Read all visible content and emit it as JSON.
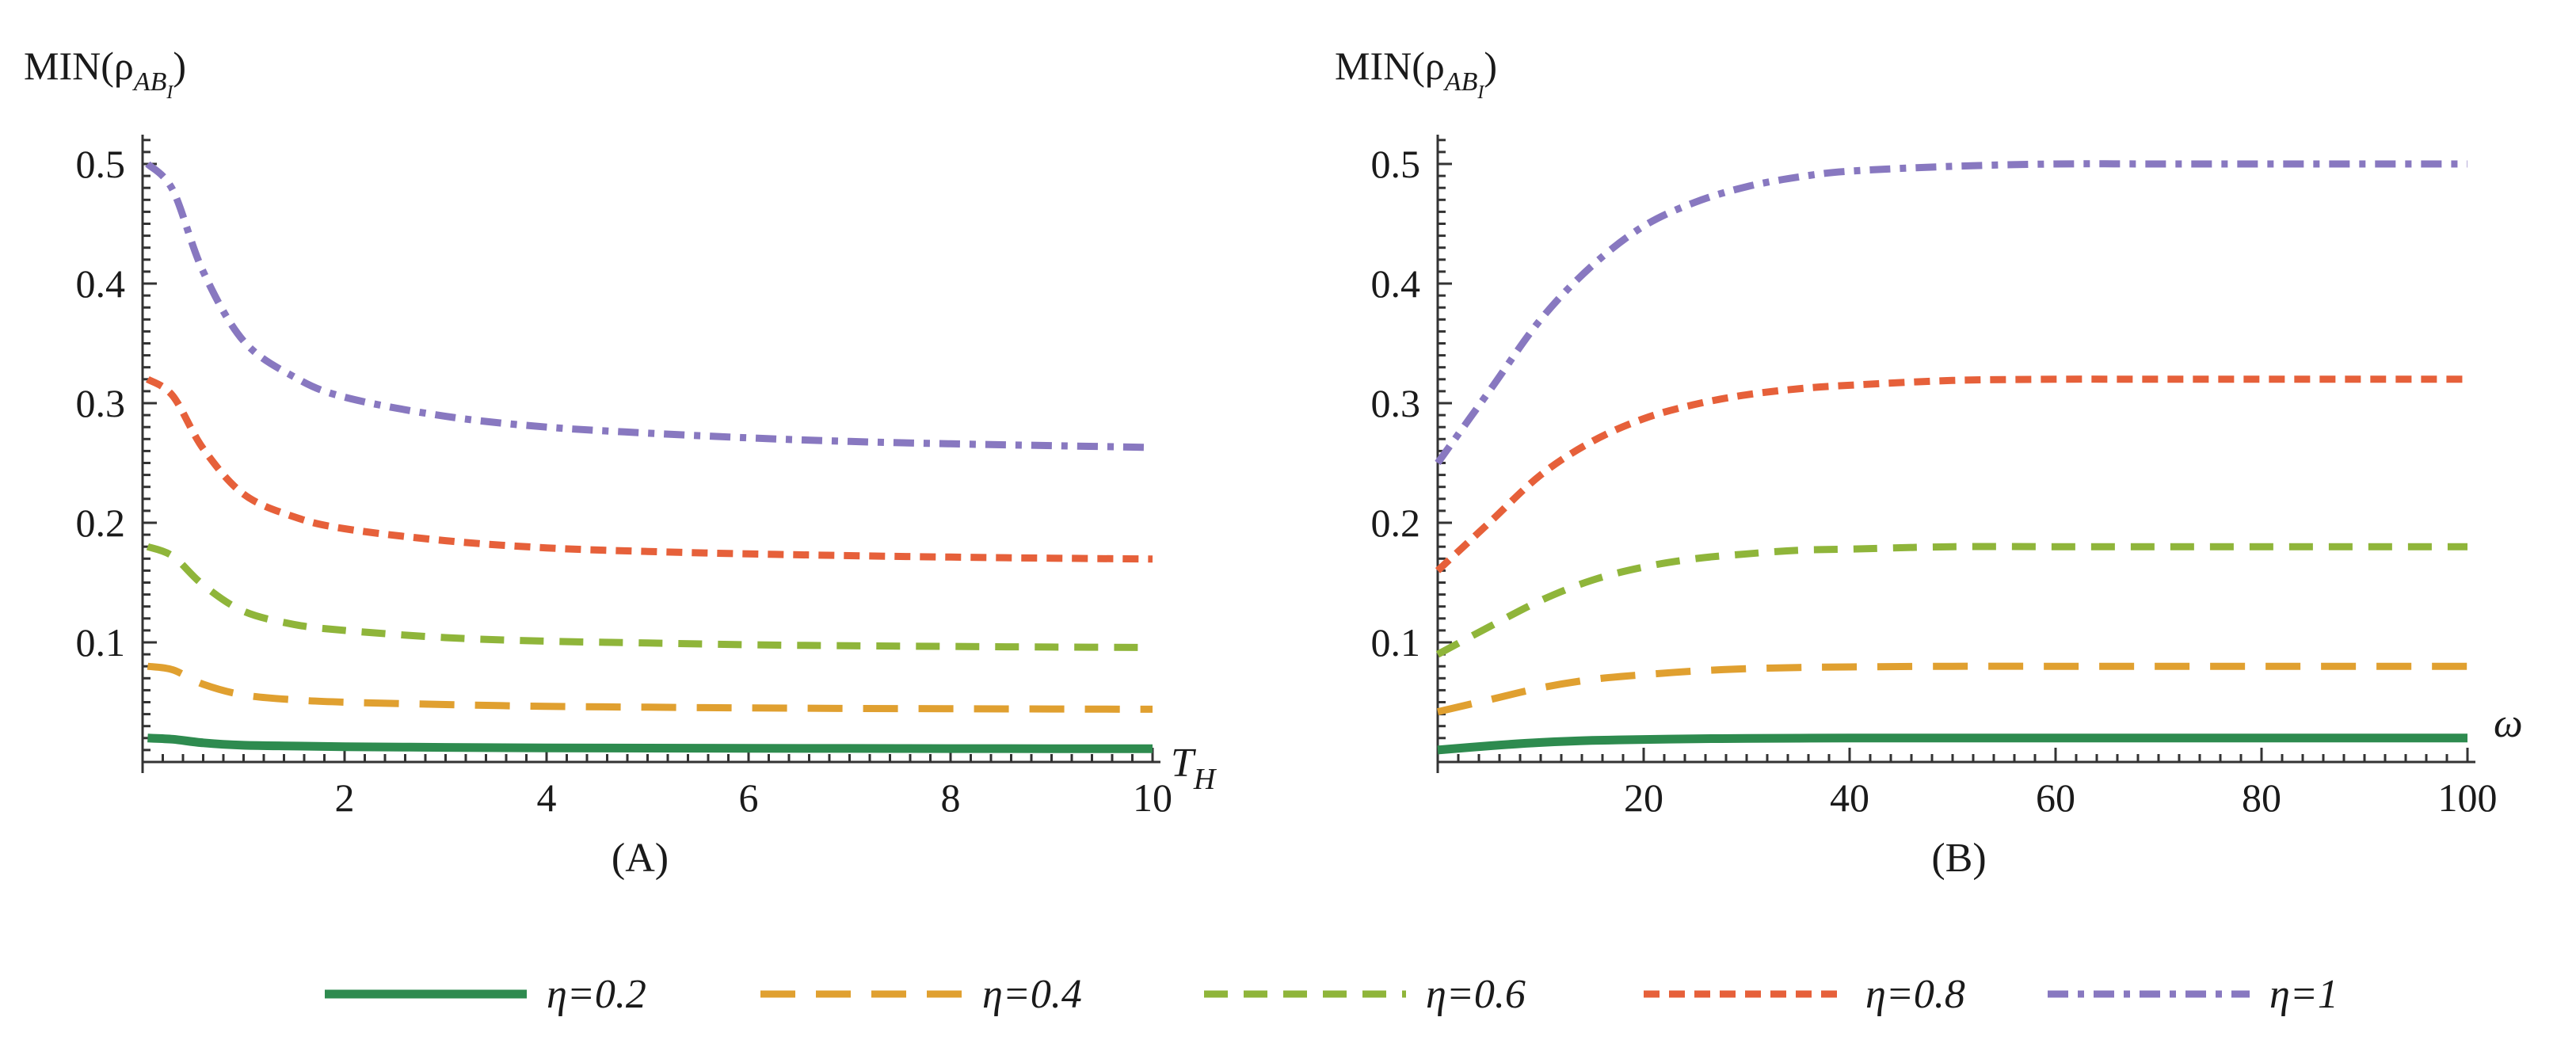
{
  "chart_data": [
    {
      "type": "line",
      "panel_label": "(A)",
      "ylabel": "MIN(ρ",
      "ylabel_sub": "AB",
      "ylabel_subsub": "I",
      "ylabel_close": ")",
      "xlabel": "T",
      "xlabel_sub": "H",
      "xlim": [
        0,
        10
      ],
      "ylim": [
        0,
        0.52
      ],
      "xticks": [
        2,
        4,
        6,
        8,
        10
      ],
      "xtick_labels": [
        "2",
        "4",
        "6",
        "8",
        "10"
      ],
      "yticks": [
        0.1,
        0.2,
        0.3,
        0.4,
        0.5
      ],
      "ytick_labels": [
        "0.1",
        "0.2",
        "0.3",
        "0.4",
        "0.5"
      ],
      "series": [
        {
          "name": "η=0.2",
          "x": [
            0.05,
            0.3,
            0.6,
            1.0,
            1.5,
            2,
            3,
            4,
            5,
            6,
            7,
            8,
            9,
            10
          ],
          "values": [
            0.02,
            0.019,
            0.016,
            0.014,
            0.0133,
            0.0128,
            0.0122,
            0.0118,
            0.0116,
            0.0114,
            0.0113,
            0.0112,
            0.0111,
            0.0111
          ]
        },
        {
          "name": "η=0.4",
          "x": [
            0.05,
            0.3,
            0.6,
            1.0,
            1.5,
            2,
            3,
            4,
            5,
            6,
            7,
            8,
            9,
            10
          ],
          "values": [
            0.08,
            0.077,
            0.065,
            0.056,
            0.052,
            0.05,
            0.048,
            0.0465,
            0.0458,
            0.0452,
            0.0448,
            0.0445,
            0.0443,
            0.0441
          ]
        },
        {
          "name": "η=0.6",
          "x": [
            0.05,
            0.3,
            0.6,
            1.0,
            1.5,
            2,
            3,
            4,
            5,
            6,
            7,
            8,
            9,
            10
          ],
          "values": [
            0.18,
            0.172,
            0.148,
            0.126,
            0.115,
            0.11,
            0.104,
            0.101,
            0.0995,
            0.098,
            0.0972,
            0.0966,
            0.0961,
            0.0957
          ]
        },
        {
          "name": "η=0.8",
          "x": [
            0.05,
            0.3,
            0.6,
            1.0,
            1.5,
            2,
            3,
            4,
            5,
            6,
            7,
            8,
            9,
            10
          ],
          "values": [
            0.32,
            0.306,
            0.262,
            0.224,
            0.205,
            0.195,
            0.185,
            0.179,
            0.176,
            0.174,
            0.1725,
            0.1713,
            0.1704,
            0.1697
          ]
        },
        {
          "name": "η=1",
          "x": [
            0.05,
            0.3,
            0.6,
            1.0,
            1.5,
            2,
            3,
            4,
            5,
            6,
            7,
            8,
            9,
            10
          ],
          "values": [
            0.5,
            0.478,
            0.41,
            0.352,
            0.322,
            0.305,
            0.289,
            0.28,
            0.275,
            0.271,
            0.268,
            0.266,
            0.2645,
            0.263
          ]
        }
      ]
    },
    {
      "type": "line",
      "panel_label": "(B)",
      "ylabel": "MIN(ρ",
      "ylabel_sub": "AB",
      "ylabel_subsub": "I",
      "ylabel_close": ")",
      "xlabel": "ω",
      "xlabel_sub": "",
      "xlim": [
        0,
        100
      ],
      "ylim": [
        0,
        0.52
      ],
      "xticks": [
        20,
        40,
        60,
        80,
        100
      ],
      "xtick_labels": [
        "20",
        "40",
        "60",
        "80",
        "100"
      ],
      "yticks": [
        0.1,
        0.2,
        0.3,
        0.4,
        0.5
      ],
      "ytick_labels": [
        "0.1",
        "0.2",
        "0.3",
        "0.4",
        "0.5"
      ],
      "series": [
        {
          "name": "η=0.2",
          "x": [
            0,
            5,
            10,
            15,
            20,
            25,
            30,
            35,
            40,
            50,
            60,
            70,
            80,
            90,
            100
          ],
          "values": [
            0.01,
            0.0135,
            0.0163,
            0.018,
            0.0188,
            0.0194,
            0.0197,
            0.0199,
            0.02,
            0.02,
            0.02,
            0.02,
            0.02,
            0.02,
            0.02
          ]
        },
        {
          "name": "η=0.4",
          "x": [
            0,
            5,
            10,
            15,
            20,
            25,
            30,
            35,
            40,
            50,
            60,
            70,
            80,
            90,
            100
          ],
          "values": [
            0.042,
            0.052,
            0.062,
            0.069,
            0.073,
            0.076,
            0.078,
            0.079,
            0.0795,
            0.08,
            0.08,
            0.08,
            0.08,
            0.08,
            0.08
          ]
        },
        {
          "name": "η=0.6",
          "x": [
            0,
            5,
            10,
            15,
            20,
            25,
            30,
            35,
            40,
            50,
            60,
            70,
            80,
            90,
            100
          ],
          "values": [
            0.09,
            0.113,
            0.135,
            0.152,
            0.163,
            0.17,
            0.174,
            0.177,
            0.178,
            0.18,
            0.18,
            0.18,
            0.18,
            0.18,
            0.18
          ]
        },
        {
          "name": "η=0.8",
          "x": [
            0,
            5,
            10,
            15,
            20,
            25,
            30,
            35,
            40,
            50,
            60,
            70,
            80,
            90,
            100
          ],
          "values": [
            0.16,
            0.2,
            0.24,
            0.268,
            0.287,
            0.299,
            0.307,
            0.312,
            0.315,
            0.319,
            0.32,
            0.32,
            0.32,
            0.32,
            0.32
          ]
        },
        {
          "name": "η=1",
          "x": [
            0,
            5,
            10,
            15,
            20,
            25,
            30,
            35,
            40,
            50,
            60,
            70,
            80,
            90,
            100
          ],
          "values": [
            0.25,
            0.31,
            0.37,
            0.415,
            0.448,
            0.468,
            0.481,
            0.489,
            0.494,
            0.498,
            0.5,
            0.5,
            0.5,
            0.5,
            0.5
          ]
        }
      ]
    }
  ],
  "legend": [
    {
      "label": "η=0.2",
      "color": "#2e8b4f",
      "dash": "solid"
    },
    {
      "label": "η=0.4",
      "color": "#e0a030",
      "dash": "long"
    },
    {
      "label": "η=0.6",
      "color": "#8fb53a",
      "dash": "medium"
    },
    {
      "label": "η=0.8",
      "color": "#e6603a",
      "dash": "short"
    },
    {
      "label": "η=1",
      "color": "#8878c0",
      "dash": "dashdot"
    }
  ]
}
